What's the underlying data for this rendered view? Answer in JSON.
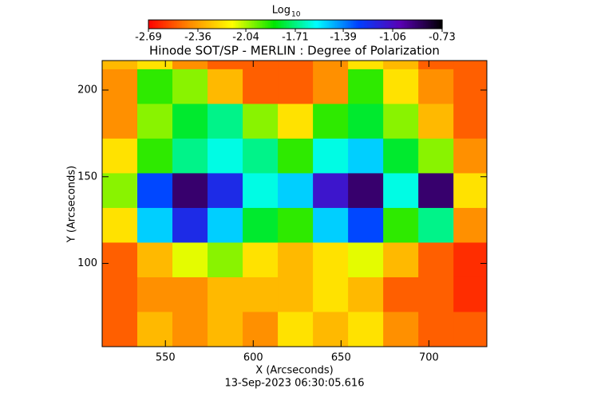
{
  "chart_data": {
    "type": "heatmap",
    "title": "Hinode SOT/SP - MERLIN : Degree of Polarization",
    "xlabel": "X (Arcseconds)",
    "ylabel": "Y (Arcseconds)",
    "footer": "13-Sep-2023 06:30:05.616",
    "colorbar_label": "Log",
    "colorbar_label_sub": "10",
    "clim": [
      -2.69,
      -0.73
    ],
    "colorbar_ticks": [
      -2.69,
      -2.36,
      -2.04,
      -1.71,
      -1.39,
      -1.06,
      -0.73
    ],
    "colormap": [
      "#ff0000",
      "#ff8c00",
      "#ffff00",
      "#00e600",
      "#00ffff",
      "#0040ff",
      "#5a00b4",
      "#000000"
    ],
    "xlim": [
      514,
      733
    ],
    "ylim": [
      52,
      217
    ],
    "xticks": [
      550,
      600,
      650,
      700
    ],
    "yticks": [
      100,
      150,
      200
    ],
    "x": [
      524,
      544,
      564,
      584,
      604,
      624,
      644,
      664,
      684,
      704,
      724
    ],
    "y": [
      222,
      202,
      182,
      162,
      142,
      122,
      102,
      82,
      62
    ],
    "z": [
      [
        -2.3,
        -2.2,
        -2.4,
        -2.5,
        -2.5,
        -2.5,
        -2.4,
        -2.2,
        -2.3,
        -2.5,
        -2.5
      ],
      [
        -2.4,
        -1.9,
        -2.0,
        -2.3,
        -2.5,
        -2.5,
        -2.4,
        -1.9,
        -2.2,
        -2.4,
        -2.5
      ],
      [
        -2.4,
        -2.0,
        -1.8,
        -1.7,
        -2.0,
        -2.2,
        -1.9,
        -1.8,
        -2.0,
        -2.3,
        -2.5
      ],
      [
        -2.2,
        -1.9,
        -1.7,
        -1.6,
        -1.7,
        -1.9,
        -1.6,
        -1.5,
        -1.8,
        -2.0,
        -2.4
      ],
      [
        -2.0,
        -1.3,
        -0.9,
        -1.2,
        -1.6,
        -1.5,
        -1.1,
        -0.9,
        -1.6,
        -0.9,
        -2.2
      ],
      [
        -2.2,
        -1.5,
        -1.2,
        -1.5,
        -1.8,
        -1.9,
        -1.5,
        -1.3,
        -1.9,
        -1.7,
        -2.4
      ],
      [
        -2.5,
        -2.3,
        -2.1,
        -2.0,
        -2.2,
        -2.3,
        -2.2,
        -2.1,
        -2.3,
        -2.5,
        -2.6
      ],
      [
        -2.5,
        -2.4,
        -2.4,
        -2.3,
        -2.3,
        -2.3,
        -2.2,
        -2.3,
        -2.5,
        -2.5,
        -2.6
      ],
      [
        -2.5,
        -2.3,
        -2.4,
        -2.3,
        -2.4,
        -2.2,
        -2.3,
        -2.2,
        -2.4,
        -2.5,
        -2.5
      ]
    ]
  }
}
